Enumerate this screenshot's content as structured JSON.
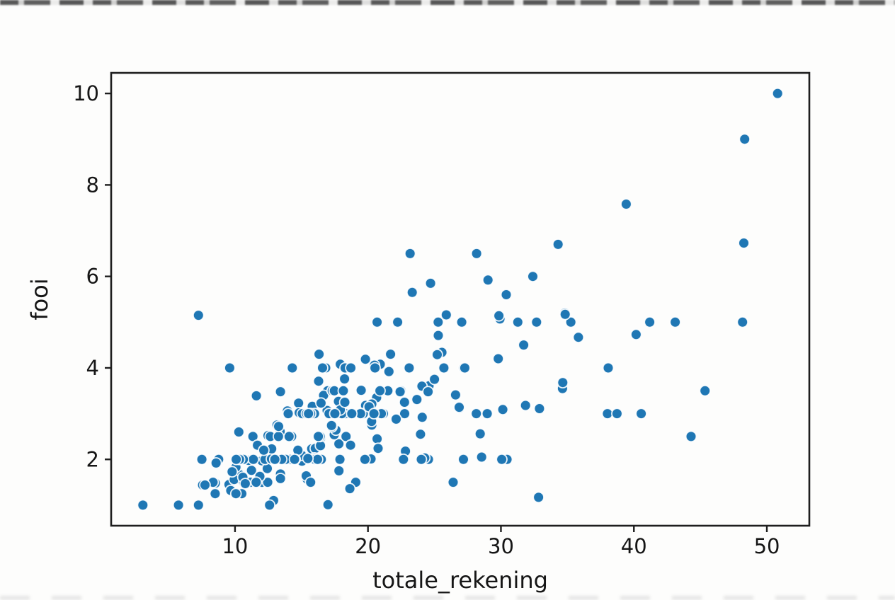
{
  "chart_data": {
    "type": "scatter",
    "title": "",
    "xlabel": "totale_rekening",
    "ylabel": "fooi",
    "xlim": [
      0.686,
      53.194
    ],
    "ylim": [
      0.55,
      10.45
    ],
    "xticks": [
      10,
      20,
      30,
      40,
      50
    ],
    "yticks": [
      2,
      4,
      6,
      8,
      10
    ],
    "grid": false,
    "legend": null,
    "marker": {
      "color": "#1f77b4",
      "edge_color": "#ffffff",
      "radius_px": 7.4
    },
    "style": {
      "spine_color": "#1e1e1e",
      "text_color": "#161616",
      "background": "#fdfdfc"
    },
    "series": [
      {
        "name": "fooi vs totale_rekening",
        "points": [
          [
            16.99,
            1.01
          ],
          [
            10.34,
            1.66
          ],
          [
            21.01,
            3.5
          ],
          [
            23.68,
            3.31
          ],
          [
            24.59,
            3.61
          ],
          [
            25.29,
            4.71
          ],
          [
            8.77,
            2.0
          ],
          [
            26.88,
            3.12
          ],
          [
            15.04,
            1.96
          ],
          [
            14.78,
            3.23
          ],
          [
            10.27,
            1.71
          ],
          [
            35.26,
            5.0
          ],
          [
            15.42,
            1.57
          ],
          [
            18.43,
            3.0
          ],
          [
            14.83,
            3.02
          ],
          [
            21.58,
            3.92
          ],
          [
            10.33,
            1.67
          ],
          [
            16.29,
            3.71
          ],
          [
            16.97,
            3.5
          ],
          [
            20.65,
            3.35
          ],
          [
            17.92,
            4.08
          ],
          [
            20.29,
            2.75
          ],
          [
            15.77,
            2.23
          ],
          [
            39.42,
            7.58
          ],
          [
            19.82,
            3.18
          ],
          [
            17.81,
            2.34
          ],
          [
            13.37,
            2.0
          ],
          [
            12.69,
            2.0
          ],
          [
            21.7,
            4.3
          ],
          [
            19.65,
            3.0
          ],
          [
            9.55,
            1.45
          ],
          [
            18.35,
            2.5
          ],
          [
            15.06,
            3.0
          ],
          [
            20.69,
            2.45
          ],
          [
            17.78,
            3.27
          ],
          [
            24.06,
            3.6
          ],
          [
            16.31,
            2.0
          ],
          [
            16.93,
            3.07
          ],
          [
            18.69,
            2.31
          ],
          [
            31.27,
            5.0
          ],
          [
            16.04,
            2.24
          ],
          [
            17.46,
            2.54
          ],
          [
            13.94,
            3.06
          ],
          [
            9.68,
            1.32
          ],
          [
            30.4,
            5.6
          ],
          [
            18.29,
            3.0
          ],
          [
            22.23,
            5.0
          ],
          [
            32.4,
            6.0
          ],
          [
            28.55,
            2.05
          ],
          [
            18.04,
            3.0
          ],
          [
            12.54,
            2.5
          ],
          [
            10.29,
            2.6
          ],
          [
            34.81,
            5.2
          ],
          [
            9.94,
            1.56
          ],
          [
            25.56,
            4.34
          ],
          [
            19.49,
            3.51
          ],
          [
            38.01,
            3.0
          ],
          [
            26.41,
            1.5
          ],
          [
            11.24,
            1.76
          ],
          [
            48.27,
            6.73
          ],
          [
            20.29,
            3.21
          ],
          [
            13.81,
            2.0
          ],
          [
            11.02,
            1.98
          ],
          [
            18.29,
            3.76
          ],
          [
            17.59,
            2.64
          ],
          [
            20.08,
            3.15
          ],
          [
            16.45,
            2.47
          ],
          [
            3.07,
            1.0
          ],
          [
            20.23,
            2.01
          ],
          [
            15.01,
            2.09
          ],
          [
            12.02,
            1.97
          ],
          [
            17.07,
            3.0
          ],
          [
            26.86,
            3.14
          ],
          [
            25.28,
            5.0
          ],
          [
            14.73,
            2.2
          ],
          [
            10.51,
            1.25
          ],
          [
            17.92,
            3.08
          ],
          [
            27.2,
            4.0
          ],
          [
            22.76,
            3.0
          ],
          [
            17.29,
            2.71
          ],
          [
            19.44,
            3.0
          ],
          [
            16.66,
            3.4
          ],
          [
            10.07,
            1.83
          ],
          [
            32.68,
            5.0
          ],
          [
            15.98,
            2.03
          ],
          [
            34.83,
            5.17
          ],
          [
            13.03,
            2.0
          ],
          [
            18.28,
            4.0
          ],
          [
            24.71,
            5.85
          ],
          [
            21.16,
            3.0
          ],
          [
            28.97,
            3.0
          ],
          [
            22.49,
            3.5
          ],
          [
            5.75,
            1.0
          ],
          [
            16.32,
            4.3
          ],
          [
            22.75,
            3.25
          ],
          [
            40.17,
            4.73
          ],
          [
            27.28,
            4.0
          ],
          [
            12.03,
            1.5
          ],
          [
            21.01,
            3.0
          ],
          [
            12.46,
            1.5
          ],
          [
            11.35,
            2.5
          ],
          [
            15.38,
            3.0
          ],
          [
            44.3,
            2.5
          ],
          [
            22.42,
            3.48
          ],
          [
            20.92,
            4.08
          ],
          [
            15.36,
            1.64
          ],
          [
            20.49,
            4.06
          ],
          [
            25.21,
            4.29
          ],
          [
            18.24,
            3.76
          ],
          [
            14.31,
            4.0
          ],
          [
            14.0,
            3.0
          ],
          [
            7.25,
            1.0
          ],
          [
            38.07,
            4.0
          ],
          [
            23.95,
            2.55
          ],
          [
            25.71,
            4.0
          ],
          [
            17.31,
            3.5
          ],
          [
            29.93,
            5.07
          ],
          [
            10.65,
            1.5
          ],
          [
            12.43,
            1.8
          ],
          [
            24.08,
            2.92
          ],
          [
            11.69,
            2.31
          ],
          [
            13.42,
            1.68
          ],
          [
            14.26,
            2.5
          ],
          [
            15.95,
            2.0
          ],
          [
            12.48,
            2.52
          ],
          [
            29.8,
            4.2
          ],
          [
            8.52,
            1.48
          ],
          [
            14.52,
            2.0
          ],
          [
            11.38,
            2.0
          ],
          [
            22.82,
            2.18
          ],
          [
            19.08,
            1.5
          ],
          [
            20.27,
            2.83
          ],
          [
            11.17,
            1.5
          ],
          [
            12.26,
            2.0
          ],
          [
            18.26,
            3.25
          ],
          [
            8.51,
            1.25
          ],
          [
            10.33,
            2.0
          ],
          [
            14.15,
            2.0
          ],
          [
            16.0,
            2.0
          ],
          [
            13.16,
            2.75
          ],
          [
            17.47,
            3.5
          ],
          [
            34.3,
            6.7
          ],
          [
            41.19,
            5.0
          ],
          [
            27.05,
            5.0
          ],
          [
            16.43,
            2.3
          ],
          [
            8.35,
            1.5
          ],
          [
            18.64,
            1.36
          ],
          [
            11.87,
            1.63
          ],
          [
            9.78,
            1.73
          ],
          [
            7.51,
            2.0
          ],
          [
            14.07,
            2.5
          ],
          [
            13.13,
            2.0
          ],
          [
            17.26,
            2.74
          ],
          [
            24.55,
            2.0
          ],
          [
            19.77,
            2.0
          ],
          [
            29.85,
            5.14
          ],
          [
            48.17,
            5.0
          ],
          [
            25.0,
            3.75
          ],
          [
            13.39,
            2.61
          ],
          [
            16.49,
            2.0
          ],
          [
            21.5,
            3.5
          ],
          [
            12.66,
            2.5
          ],
          [
            16.21,
            2.0
          ],
          [
            13.81,
            2.0
          ],
          [
            17.51,
            3.0
          ],
          [
            24.52,
            3.48
          ],
          [
            20.76,
            2.24
          ],
          [
            31.71,
            4.5
          ],
          [
            10.59,
            1.61
          ],
          [
            10.63,
            2.0
          ],
          [
            50.81,
            10.0
          ],
          [
            15.81,
            3.16
          ],
          [
            7.25,
            5.15
          ],
          [
            31.85,
            3.18
          ],
          [
            16.82,
            4.0
          ],
          [
            32.9,
            3.11
          ],
          [
            17.89,
            2.0
          ],
          [
            14.48,
            2.0
          ],
          [
            9.6,
            4.0
          ],
          [
            34.63,
            3.55
          ],
          [
            34.65,
            3.68
          ],
          [
            23.33,
            5.65
          ],
          [
            45.35,
            3.5
          ],
          [
            23.17,
            6.5
          ],
          [
            40.55,
            3.0
          ],
          [
            20.69,
            5.0
          ],
          [
            20.9,
            3.5
          ],
          [
            30.46,
            2.0
          ],
          [
            18.15,
            3.5
          ],
          [
            23.1,
            4.0
          ],
          [
            15.69,
            1.5
          ],
          [
            19.81,
            4.19
          ],
          [
            28.44,
            2.56
          ],
          [
            15.48,
            2.02
          ],
          [
            16.58,
            4.0
          ],
          [
            7.56,
            1.44
          ],
          [
            10.34,
            2.0
          ],
          [
            43.11,
            5.0
          ],
          [
            13.0,
            2.0
          ],
          [
            13.51,
            2.0
          ],
          [
            18.71,
            4.0
          ],
          [
            12.74,
            2.01
          ],
          [
            13.0,
            2.0
          ],
          [
            16.4,
            2.5
          ],
          [
            20.53,
            4.0
          ],
          [
            16.47,
            3.23
          ],
          [
            26.59,
            3.41
          ],
          [
            38.73,
            3.0
          ],
          [
            24.27,
            2.03
          ],
          [
            12.76,
            2.23
          ],
          [
            30.06,
            2.0
          ],
          [
            25.89,
            5.16
          ],
          [
            48.33,
            9.0
          ],
          [
            13.27,
            2.5
          ],
          [
            28.17,
            6.5
          ],
          [
            12.9,
            1.1
          ],
          [
            28.15,
            3.0
          ],
          [
            11.59,
            1.5
          ],
          [
            7.74,
            1.44
          ],
          [
            30.14,
            3.09
          ],
          [
            12.16,
            2.2
          ],
          [
            13.42,
            3.48
          ],
          [
            8.58,
            1.92
          ],
          [
            15.98,
            3.0
          ],
          [
            13.42,
            1.58
          ],
          [
            16.27,
            2.5
          ],
          [
            10.09,
            2.0
          ],
          [
            20.45,
            3.0
          ],
          [
            13.28,
            2.72
          ],
          [
            22.12,
            2.88
          ],
          [
            24.01,
            2.0
          ],
          [
            15.69,
            3.0
          ],
          [
            11.61,
            3.39
          ],
          [
            10.77,
            1.47
          ],
          [
            15.53,
            3.0
          ],
          [
            10.07,
            1.25
          ],
          [
            12.6,
            1.0
          ],
          [
            32.83,
            1.17
          ],
          [
            35.83,
            4.67
          ],
          [
            29.03,
            5.92
          ],
          [
            27.18,
            2.0
          ],
          [
            22.67,
            2.0
          ],
          [
            17.82,
            1.75
          ],
          [
            18.78,
            3.0
          ]
        ]
      }
    ]
  }
}
